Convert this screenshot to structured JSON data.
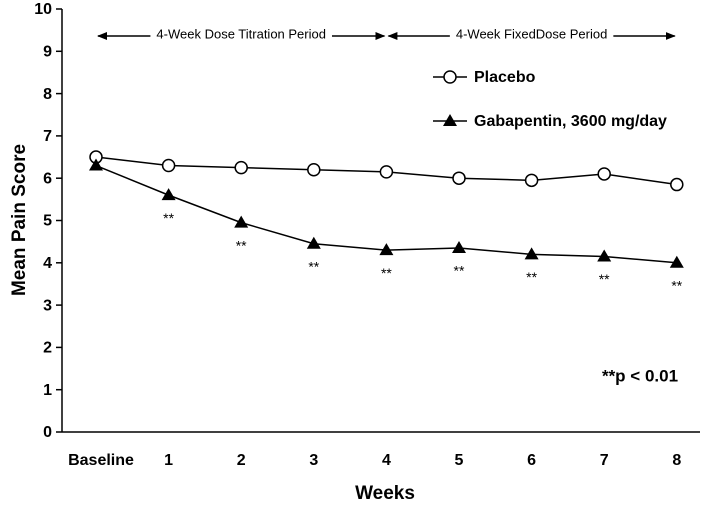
{
  "chart_data": {
    "type": "line",
    "x_label": "Weeks",
    "y_label": "Mean Pain Score",
    "categories": [
      "Baseline",
      "1",
      "2",
      "3",
      "4",
      "5",
      "6",
      "7",
      "8"
    ],
    "series": [
      {
        "name": "Placebo",
        "color": "#000000",
        "marker": "circle",
        "values": [
          6.5,
          6.3,
          6.25,
          6.2,
          6.15,
          6.0,
          5.95,
          6.1,
          5.85
        ]
      },
      {
        "name": "Gabapentin, 3600 mg/day",
        "color": "#000000",
        "marker": "triangle",
        "values": [
          6.3,
          5.6,
          4.95,
          4.45,
          4.3,
          4.35,
          4.2,
          4.15,
          4.0
        ],
        "significance_labels": [
          null,
          "**",
          "**",
          "**",
          "**",
          "**",
          "**",
          "**",
          "**"
        ]
      }
    ],
    "periods": [
      "4-Week Dose Titration Period",
      "4-Week FixedDose Period"
    ],
    "note": "**p < 0.01",
    "ylim": [
      0,
      10
    ],
    "yticks": [
      0,
      1,
      2,
      3,
      4,
      5,
      6,
      7,
      8,
      9,
      10
    ],
    "grid": false
  }
}
